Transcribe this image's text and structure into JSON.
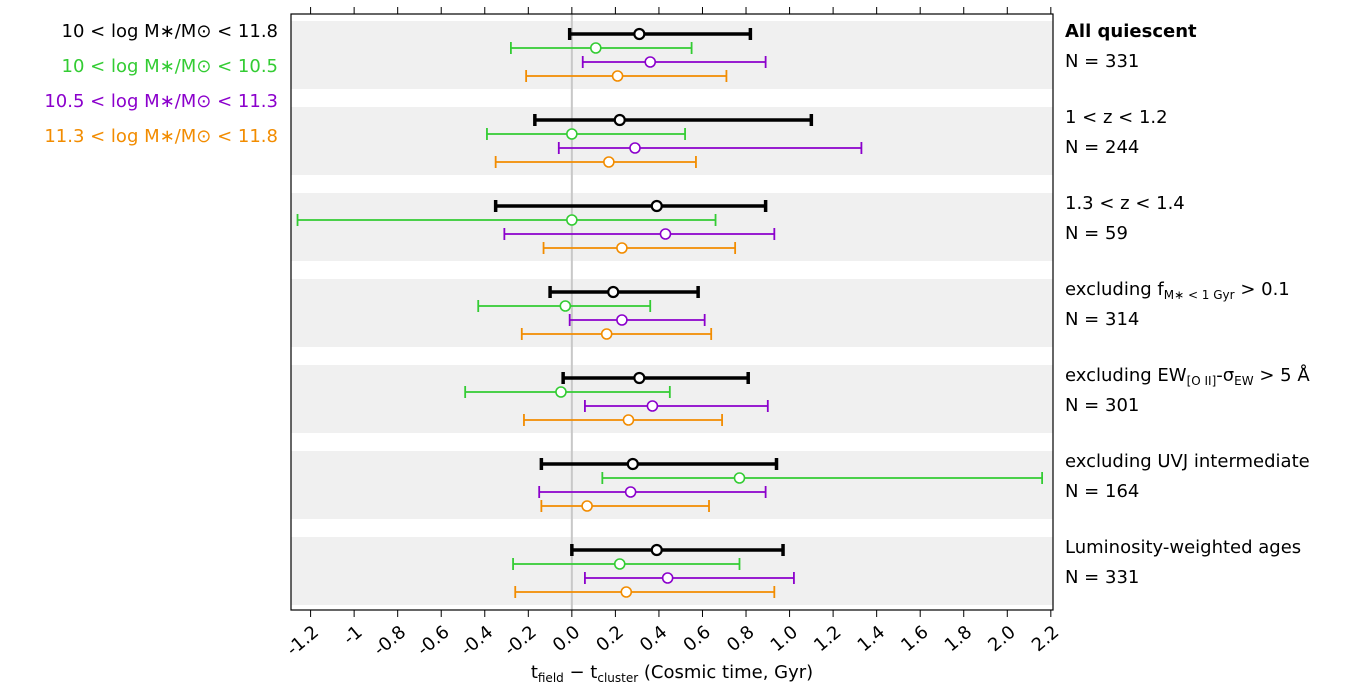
{
  "chart_data": {
    "type": "forest",
    "xlabel": [
      "t",
      "field",
      " − t",
      "cluster",
      " (Cosmic time, Gyr)"
    ],
    "xlim": [
      -1.29,
      2.21
    ],
    "xticks": [
      -1.2,
      -1.0,
      -0.8,
      -0.6,
      -0.4,
      -0.2,
      {
        "value": 0,
        "label": "0.0"
      },
      0.2,
      0.4,
      0.6,
      0.8,
      {
        "value": 1,
        "label": "1.0"
      },
      1.2,
      1.4,
      1.6,
      1.8,
      {
        "value": 2,
        "label": "2.0"
      },
      2.2
    ],
    "groups": [
      {
        "label": [
          "All quiescent"
        ],
        "n": "N = 331",
        "bold": true
      },
      {
        "label": [
          "1 < z < 1.2"
        ],
        "n": "N = 244"
      },
      {
        "label": [
          "1.3 < z < 1.4"
        ],
        "n": "N = 59"
      },
      {
        "label": [
          "excluding f",
          "M∗ < 1 Gyr",
          " > 0.1"
        ],
        "n": "N = 314"
      },
      {
        "label": [
          "excluding EW",
          "[O II]",
          "-σ",
          "EW",
          " > 5 Å"
        ],
        "n": "N = 301"
      },
      {
        "label": [
          "excluding UVJ intermediate"
        ],
        "n": "N = 164"
      },
      {
        "label": [
          "Luminosity-weighted ages"
        ],
        "n": "N = 331"
      }
    ],
    "series": [
      {
        "name": "10 < log M∗/M⊙ < 11.8",
        "color": "#000000",
        "values": [
          0.31,
          0.22,
          0.39,
          0.19,
          0.31,
          0.28,
          0.39
        ],
        "lo": [
          -0.01,
          -0.17,
          -0.35,
          -0.1,
          -0.04,
          -0.14,
          0.0
        ],
        "hi": [
          0.82,
          1.1,
          0.89,
          0.58,
          0.81,
          0.94,
          0.97
        ]
      },
      {
        "name": "10 < log M∗/M⊙ < 10.5",
        "color": "#33cc33",
        "values": [
          0.11,
          0.0,
          0.0,
          -0.03,
          -0.05,
          0.77,
          0.22
        ],
        "lo": [
          -0.28,
          -0.39,
          -1.26,
          -0.43,
          -0.49,
          0.14,
          -0.27
        ],
        "hi": [
          0.55,
          0.52,
          0.66,
          0.36,
          0.45,
          2.16,
          0.77
        ]
      },
      {
        "name": "10.5 < log M∗/M⊙ < 11.3",
        "color": "#8b00cc",
        "values": [
          0.36,
          0.29,
          0.43,
          0.23,
          0.37,
          0.27,
          0.44
        ],
        "lo": [
          0.05,
          -0.06,
          -0.31,
          -0.01,
          0.06,
          -0.15,
          0.06
        ],
        "hi": [
          0.89,
          1.33,
          0.93,
          0.61,
          0.9,
          0.89,
          1.02
        ]
      },
      {
        "name": "11.3 < log M∗/M⊙ < 11.8",
        "color": "#f28c00",
        "values": [
          0.21,
          0.17,
          0.23,
          0.16,
          0.26,
          0.07,
          0.25
        ],
        "lo": [
          -0.21,
          -0.35,
          -0.13,
          -0.23,
          -0.22,
          -0.14,
          -0.26
        ],
        "hi": [
          0.71,
          0.57,
          0.75,
          0.64,
          0.69,
          0.63,
          0.93
        ]
      }
    ]
  }
}
